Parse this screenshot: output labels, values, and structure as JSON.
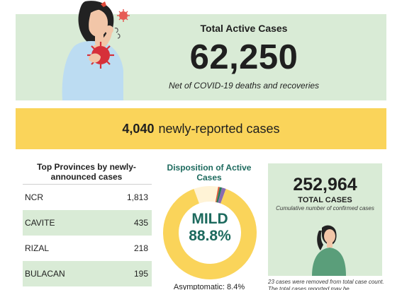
{
  "active": {
    "title": "Total Active Cases",
    "count": "62,250",
    "subtitle": "Net of COVID-19 deaths and recoveries"
  },
  "new_cases": {
    "count": "4,040",
    "label": "newly-reported cases"
  },
  "provinces": {
    "title": "Top Provinces by newly-announced cases",
    "rows": [
      {
        "name": "NCR",
        "value": "1,813"
      },
      {
        "name": "CAVITE",
        "value": "435"
      },
      {
        "name": "RIZAL",
        "value": "218"
      },
      {
        "name": "BULACAN",
        "value": "195"
      }
    ]
  },
  "disposition": {
    "title": "Disposition of Active Cases",
    "main_label": "MILD",
    "main_pct": "88.8%",
    "main_value": 88.8,
    "asymptomatic": "Asymptomatic: 8.4%",
    "asymptomatic_value": 8.4,
    "other_values": [
      1.5,
      0.8,
      0.5
    ],
    "colors": {
      "mild": "#fad45a",
      "asymptomatic": "#fff3d6",
      "severe": "#e05a3a",
      "critical": "#2a7a5a",
      "other": "#8a6bb0",
      "text_accent": "#1d6a5e"
    }
  },
  "total": {
    "count": "252,964",
    "label": "TOTAL CASES",
    "description": "Cumulative number of confirmed cases",
    "note": "23 cases were removed from total case count. The total cases reported may be"
  },
  "colors": {
    "card_green": "#d9ebd6",
    "band_yellow": "#fad45a"
  },
  "icons": {
    "top_illustration": "coughing-person-icon",
    "total_illustration": "person-icon"
  }
}
